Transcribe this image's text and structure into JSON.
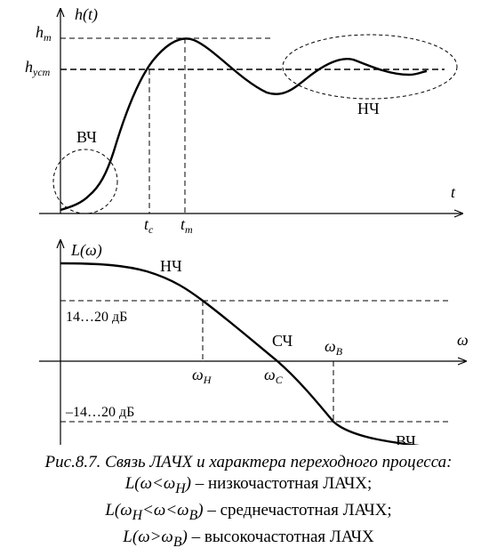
{
  "figure": {
    "top_plot": {
      "y_axis_label": "h(t)",
      "x_axis_label": "t",
      "y_tick_hm": "h",
      "y_tick_hm_sub": "m",
      "y_tick_hust": "h",
      "y_tick_hust_sub": "уст",
      "x_tick_tc": "t",
      "x_tick_tc_sub": "c",
      "x_tick_tm": "t",
      "x_tick_tm_sub": "m",
      "region_hf_label": "ВЧ",
      "region_lf_label": "НЧ"
    },
    "bottom_plot": {
      "y_axis_label": "L(ω)",
      "x_axis_label": "ω",
      "level_upper_label": "14…20 дБ",
      "level_lower_label": "–14…20 дБ",
      "omega_n": "ω",
      "omega_n_sub": "Н",
      "omega_c": "ω",
      "omega_c_sub": "С",
      "omega_b": "ω",
      "omega_b_sub": "В",
      "region_lf_label": "НЧ",
      "region_mf_label": "СЧ",
      "region_hf_label": "ВЧ"
    }
  },
  "caption": {
    "title": "Рис.8.7. Связь ЛАЧХ и характера переходного процесса:",
    "line1_math": "L(ω<ω",
    "line1_sub": "Н",
    "line1_close": ")",
    "line1_text": " – низкочастотная ЛАЧХ;",
    "line2_math_a": "L(ω",
    "line2_sub_a": "Н",
    "line2_math_b": "<ω<ω",
    "line2_sub_b": "В",
    "line2_close": ")",
    "line2_text": " – среднечастотная ЛАЧХ;",
    "line3_math": "L(ω>ω",
    "line3_sub": "В",
    "line3_close": ")",
    "line3_text": " – высокочастотная ЛАЧХ"
  }
}
